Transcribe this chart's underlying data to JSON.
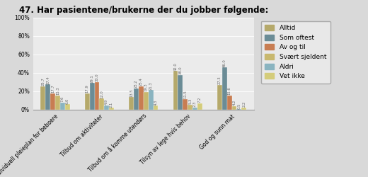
{
  "title": "47. Har pasientene/brukerne der du jobber følgende:",
  "categories": [
    "Individuell pleieplan for beboere",
    "Tilbud om aktiviteter",
    "Tilbud om å komme utendørs",
    "Tilsyn av lege hvis behov",
    "God og sunn mat"
  ],
  "series_names": [
    "Alltid",
    "Som oftest",
    "Av og til",
    "Svært sjeldent",
    "Aldri",
    "Vet ikke"
  ],
  "series_colors": [
    "#b5a96b",
    "#6b8c96",
    "#c87d52",
    "#c8b86e",
    "#8ab4c0",
    "#d4cc7a"
  ],
  "values": [
    [
      25.7,
      27.4,
      17.7,
      15.3,
      7.6,
      6.0
    ],
    [
      17.9,
      29.1,
      30.0,
      12.0,
      4.9,
      2.1
    ],
    [
      13.5,
      23.2,
      25.4,
      19.3,
      21.3,
      4.3
    ],
    [
      42.0,
      38.0,
      11.5,
      5.3,
      2.3,
      7.2
    ],
    [
      27.3,
      46.0,
      15.6,
      4.2,
      0.5,
      2.2
    ]
  ],
  "ylim": [
    0,
    100
  ],
  "yticks": [
    0,
    20,
    40,
    60,
    80,
    100
  ],
  "ytick_labels": [
    "0%",
    "20%",
    "40%",
    "60%",
    "80%",
    "100%"
  ],
  "bar_width": 0.11,
  "value_fontsize": 3.8,
  "legend_fontsize": 6.5,
  "title_fontsize": 8.5,
  "axis_label_fontsize": 5.5,
  "bg_color": "#d9d9d9",
  "plot_bg_color": "#ebebeb"
}
